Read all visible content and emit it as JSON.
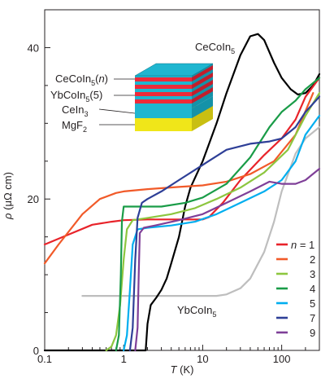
{
  "chart_data": {
    "type": "line",
    "xlabel": "T (K)",
    "ylabel": "ρ (μΩ cm)",
    "xscale": "log",
    "xlim": [
      0.1,
      300
    ],
    "ylim": [
      0,
      45
    ],
    "xticks": [
      {
        "value": 0.1,
        "label": "0.1"
      },
      {
        "value": 1,
        "label": "1"
      },
      {
        "value": 10,
        "label": "10"
      },
      {
        "value": 100,
        "label": "100"
      }
    ],
    "yticks": [
      {
        "value": 0,
        "label": "0"
      },
      {
        "value": 20,
        "label": "20"
      },
      {
        "value": 40,
        "label": "40"
      }
    ],
    "legend_position": "bottom-right",
    "legend_prefix": "n =",
    "series": [
      {
        "name": "1",
        "color": "#e8232a",
        "points": [
          [
            0.1,
            14.0
          ],
          [
            0.2,
            15.3
          ],
          [
            0.4,
            16.6
          ],
          [
            0.7,
            17.0
          ],
          [
            1,
            17.2
          ],
          [
            2,
            17.3
          ],
          [
            5,
            17.3
          ],
          [
            10,
            17.3
          ],
          [
            12,
            17.6
          ],
          [
            18,
            19.5
          ],
          [
            30,
            22.5
          ],
          [
            60,
            25.8
          ],
          [
            100,
            28.0
          ],
          [
            150,
            30.5
          ],
          [
            200,
            33.5
          ],
          [
            300,
            36.0
          ]
        ]
      },
      {
        "name": "2",
        "color": "#f15a29",
        "points": [
          [
            0.1,
            11.5
          ],
          [
            0.15,
            14.0
          ],
          [
            0.3,
            18.0
          ],
          [
            0.5,
            20.0
          ],
          [
            0.8,
            20.8
          ],
          [
            1,
            21.0
          ],
          [
            2,
            21.3
          ],
          [
            5,
            21.6
          ],
          [
            10,
            21.8
          ],
          [
            20,
            22.3
          ],
          [
            40,
            23.3
          ],
          [
            80,
            25.0
          ],
          [
            150,
            28.5
          ],
          [
            250,
            34.0
          ]
        ]
      },
      {
        "name": "3",
        "color": "#8dc63f",
        "points": [
          [
            0.6,
            0.0
          ],
          [
            0.7,
            0.5
          ],
          [
            0.8,
            2.0
          ],
          [
            0.9,
            6.0
          ],
          [
            1.0,
            12.0
          ],
          [
            1.1,
            16.0
          ],
          [
            1.3,
            17.2
          ],
          [
            2,
            17.5
          ],
          [
            4,
            18.0
          ],
          [
            8,
            18.8
          ],
          [
            15,
            20.0
          ],
          [
            30,
            21.5
          ],
          [
            60,
            23.5
          ],
          [
            120,
            26.5
          ],
          [
            200,
            31.0
          ],
          [
            300,
            34.0
          ]
        ]
      },
      {
        "name": "4",
        "color": "#1a9c48",
        "points": [
          [
            0.8,
            0.0
          ],
          [
            0.87,
            2.0
          ],
          [
            0.92,
            10.0
          ],
          [
            0.95,
            17.0
          ],
          [
            1.0,
            19.0
          ],
          [
            1.5,
            19.0
          ],
          [
            3,
            19.0
          ],
          [
            6,
            19.5
          ],
          [
            10,
            20.2
          ],
          [
            20,
            22.0
          ],
          [
            40,
            25.5
          ],
          [
            70,
            29.5
          ],
          [
            100,
            31.5
          ],
          [
            150,
            33.0
          ],
          [
            200,
            34.5
          ],
          [
            300,
            36.0
          ]
        ]
      },
      {
        "name": "5",
        "color": "#00aeef",
        "points": [
          [
            1.0,
            0.0
          ],
          [
            1.1,
            2.0
          ],
          [
            1.2,
            8.0
          ],
          [
            1.3,
            14.0
          ],
          [
            1.5,
            16.0
          ],
          [
            2,
            16.2
          ],
          [
            4,
            16.5
          ],
          [
            8,
            17.0
          ],
          [
            15,
            18.0
          ],
          [
            30,
            19.5
          ],
          [
            60,
            21.0
          ],
          [
            100,
            22.5
          ],
          [
            150,
            25.0
          ],
          [
            200,
            28.5
          ],
          [
            300,
            31.0
          ]
        ]
      },
      {
        "name": "7",
        "color": "#2e3f97",
        "points": [
          [
            1.2,
            0.0
          ],
          [
            1.3,
            3.0
          ],
          [
            1.4,
            12.0
          ],
          [
            1.5,
            17.5
          ],
          [
            1.7,
            19.5
          ],
          [
            2,
            20.0
          ],
          [
            3,
            21.0
          ],
          [
            5,
            22.5
          ],
          [
            10,
            24.5
          ],
          [
            20,
            26.5
          ],
          [
            40,
            27.3
          ],
          [
            70,
            27.6
          ],
          [
            100,
            28.0
          ],
          [
            150,
            29.5
          ],
          [
            200,
            31.5
          ],
          [
            300,
            33.5
          ]
        ]
      },
      {
        "name": "9",
        "color": "#7f3f98",
        "points": [
          [
            1.4,
            0.0
          ],
          [
            1.5,
            3.0
          ],
          [
            1.55,
            10.0
          ],
          [
            1.6,
            15.5
          ],
          [
            1.8,
            16.2
          ],
          [
            2.5,
            16.5
          ],
          [
            5,
            17.2
          ],
          [
            10,
            18.0
          ],
          [
            20,
            19.5
          ],
          [
            40,
            21.0
          ],
          [
            70,
            22.3
          ],
          [
            100,
            22.0
          ],
          [
            150,
            22.0
          ],
          [
            200,
            22.5
          ],
          [
            300,
            24.0
          ]
        ]
      }
    ],
    "annotated_curves": [
      {
        "label": "CeCoIn",
        "label_sub": "5",
        "color": "#000000",
        "points": [
          [
            0.1,
            0.0
          ],
          [
            1.9,
            0.0
          ],
          [
            2.0,
            3.5
          ],
          [
            2.2,
            6.0
          ],
          [
            2.6,
            7.0
          ],
          [
            3,
            8.0
          ],
          [
            3.5,
            9.5
          ],
          [
            4,
            11.5
          ],
          [
            5,
            15.0
          ],
          [
            6,
            19.0
          ],
          [
            7,
            21.5
          ],
          [
            10,
            25.0
          ],
          [
            15,
            30.0
          ],
          [
            20,
            34.0
          ],
          [
            30,
            39.0
          ],
          [
            40,
            41.5
          ],
          [
            50,
            41.8
          ],
          [
            60,
            41.0
          ],
          [
            80,
            38.0
          ],
          [
            100,
            36.0
          ],
          [
            130,
            34.5
          ],
          [
            160,
            33.8
          ],
          [
            200,
            34.0
          ],
          [
            250,
            35.0
          ],
          [
            300,
            36.5
          ]
        ]
      },
      {
        "label": "YbCoIn",
        "label_sub": "5",
        "color": "#bebebe",
        "points": [
          [
            0.3,
            7.2
          ],
          [
            1,
            7.2
          ],
          [
            5,
            7.2
          ],
          [
            15,
            7.2
          ],
          [
            20,
            7.4
          ],
          [
            30,
            8.2
          ],
          [
            40,
            9.5
          ],
          [
            60,
            13.0
          ],
          [
            80,
            17.0
          ],
          [
            100,
            21.0
          ],
          [
            150,
            26.0
          ],
          [
            200,
            28.0
          ],
          [
            300,
            29.5
          ]
        ]
      }
    ],
    "inset_labels": [
      "CeCoIn5(n)",
      "YbCoIn5(5)",
      "CeIn3",
      "MgF2"
    ],
    "inset_colors": {
      "top": "#1fb6d0",
      "red": "#ee2a3a",
      "cyan": "#1fb6d0",
      "yellow": "#f0e619"
    }
  }
}
